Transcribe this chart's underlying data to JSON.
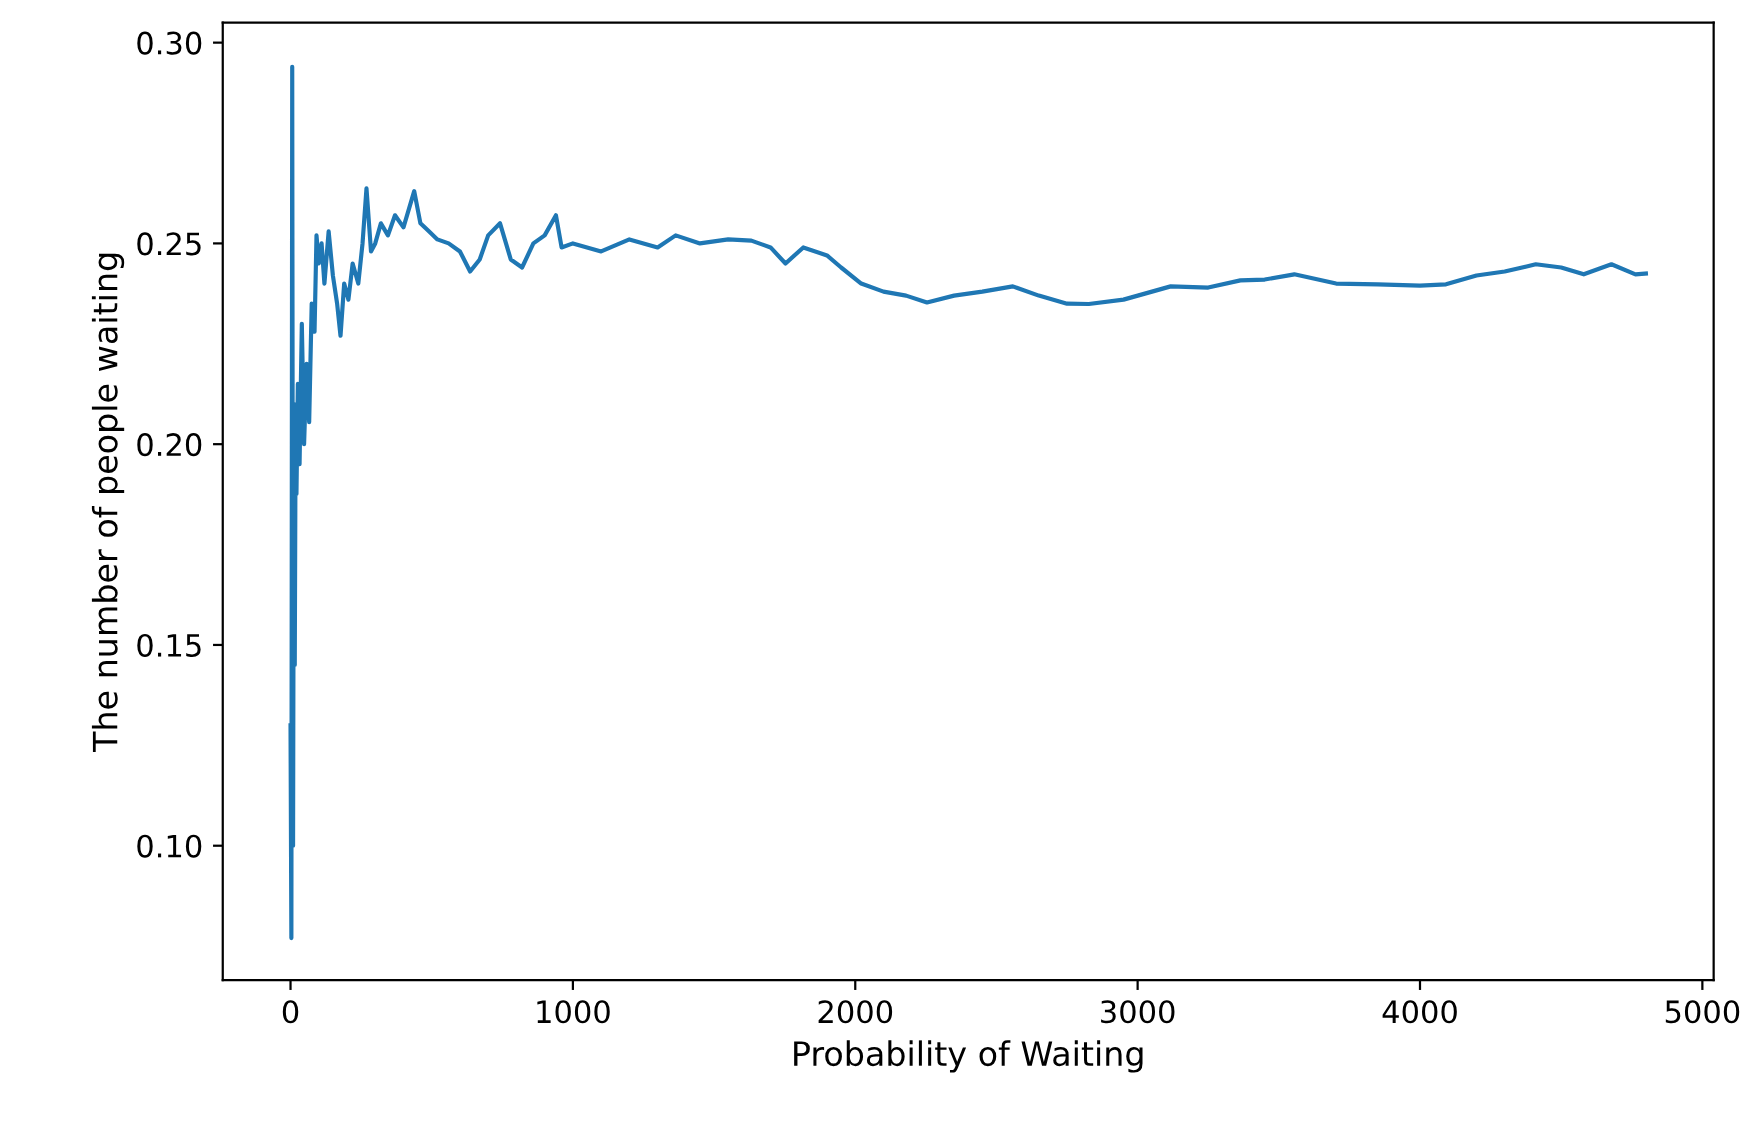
{
  "chart_data": {
    "type": "line",
    "xlabel": "Probability of Waiting",
    "ylabel": "The number of people waiting",
    "xlim": [
      -240,
      5040
    ],
    "xticks": [
      0,
      1000,
      2000,
      3000,
      4000,
      5000
    ],
    "ylim": [
      0.0665,
      0.305
    ],
    "yticks": [
      {
        "value": 0.1,
        "label": "0.10"
      },
      {
        "value": 0.15,
        "label": "0.15"
      },
      {
        "value": 0.2,
        "label": "0.20"
      },
      {
        "value": 0.25,
        "label": "0.25"
      },
      {
        "value": 0.3,
        "label": "0.30"
      }
    ],
    "grid": false,
    "marker": "none",
    "line_style": "solid",
    "series": [
      {
        "color": "#1f77b4",
        "x": [
          0,
          3,
          6,
          9,
          12,
          15,
          18,
          21,
          26,
          32,
          40,
          48,
          57,
          66,
          75,
          85,
          92,
          100,
          110,
          120,
          135,
          150,
          165,
          177,
          190,
          205,
          220,
          240,
          255,
          269,
          285,
          300,
          320,
          345,
          370,
          400,
          438,
          460,
          490,
          520,
          560,
          600,
          636,
          670,
          700,
          742,
          780,
          820,
          860,
          900,
          940,
          960,
          1000,
          1100,
          1200,
          1300,
          1364,
          1450,
          1550,
          1632,
          1700,
          1753,
          1816,
          1900,
          1950,
          2021,
          2100,
          2180,
          2254,
          2350,
          2450,
          2558,
          2650,
          2750,
          2827,
          2950,
          3117,
          3250,
          3364,
          3450,
          3555,
          3703,
          3850,
          4000,
          4092,
          4200,
          4300,
          4410,
          4500,
          4580,
          4678,
          4763,
          4800
        ],
        "values": [
          0.13,
          0.077,
          0.294,
          0.1,
          0.21,
          0.145,
          0.205,
          0.1876,
          0.215,
          0.195,
          0.23,
          0.2,
          0.22,
          0.2055,
          0.235,
          0.228,
          0.252,
          0.245,
          0.25,
          0.24,
          0.253,
          0.242,
          0.235,
          0.227,
          0.24,
          0.236,
          0.245,
          0.24,
          0.25,
          0.2637,
          0.248,
          0.25,
          0.255,
          0.252,
          0.257,
          0.254,
          0.263,
          0.255,
          0.253,
          0.251,
          0.25,
          0.248,
          0.243,
          0.246,
          0.252,
          0.255,
          0.246,
          0.244,
          0.25,
          0.252,
          0.257,
          0.249,
          0.25,
          0.248,
          0.251,
          0.249,
          0.252,
          0.25,
          0.251,
          0.2507,
          0.249,
          0.245,
          0.249,
          0.247,
          0.244,
          0.24,
          0.238,
          0.237,
          0.2353,
          0.237,
          0.238,
          0.2393,
          0.237,
          0.235,
          0.2349,
          0.236,
          0.2393,
          0.239,
          0.2408,
          0.241,
          0.2423,
          0.24,
          0.2398,
          0.2395,
          0.2398,
          0.242,
          0.243,
          0.2448,
          0.244,
          0.2423,
          0.2448,
          0.2423,
          0.2425
        ]
      }
    ]
  }
}
